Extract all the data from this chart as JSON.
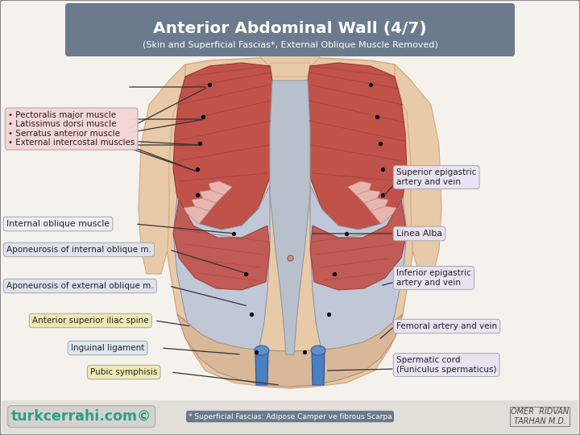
{
  "title_main": "Anterior Abdominal Wall (4/7)",
  "title_sub": "(Skin and Superficial Fascias*, External Oblique Muscle Removed)",
  "title_bg": "#6b7a8d",
  "title_fg": "#ffffff",
  "bg_color": "#f5f2ee",
  "body_skin": "#e8c9a8",
  "body_skin_dark": "#d4a882",
  "muscle_red": "#c0524a",
  "muscle_red_light": "#d07a72",
  "muscle_red_dark": "#9a3830",
  "linea_color": "#b8c0cc",
  "apo_color": "#c0c8d8",
  "rib_fill": "#f0c8c0",
  "footer_left_text": "turkcerrahi.com©",
  "footer_left_color": "#2a9d8f",
  "footer_mid_text": "* Superficial Fascias: Adipose Camper ve fibrous Scarpa",
  "footer_mid_bg": "#6b7a8d",
  "footer_right_text": "OMER  RIDVAN\nTARHAN M.D."
}
